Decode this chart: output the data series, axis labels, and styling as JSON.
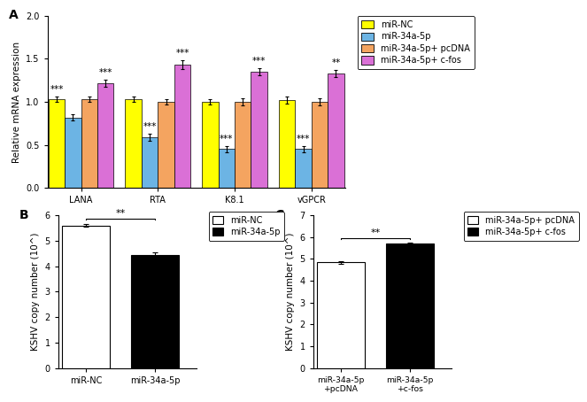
{
  "panel_A": {
    "groups": [
      "LANA",
      "RTA",
      "K8.1",
      "vGPCR"
    ],
    "bar_colors": [
      "#FFFF00",
      "#6CB4E4",
      "#F4A460",
      "#DA70D6"
    ],
    "legend_labels": [
      "miR-NC",
      "miR-34a-5p",
      "miR-34a-5p+ pcDNA",
      "miR-34a-5p+ c-fos"
    ],
    "values": {
      "LANA": [
        1.03,
        0.82,
        1.03,
        1.22
      ],
      "RTA": [
        1.03,
        0.59,
        1.0,
        1.43
      ],
      "K8.1": [
        1.0,
        0.45,
        1.0,
        1.35
      ],
      "vGPCR": [
        1.02,
        0.45,
        1.0,
        1.33
      ]
    },
    "errors": {
      "LANA": [
        0.03,
        0.04,
        0.03,
        0.04
      ],
      "RTA": [
        0.03,
        0.04,
        0.03,
        0.05
      ],
      "K8.1": [
        0.03,
        0.04,
        0.04,
        0.04
      ],
      "vGPCR": [
        0.04,
        0.04,
        0.04,
        0.04
      ]
    },
    "significance": {
      "LANA": [
        "***",
        "",
        "",
        "***"
      ],
      "RTA": [
        "",
        "***",
        "",
        "***"
      ],
      "K8.1": [
        "",
        "***",
        "",
        "***"
      ],
      "vGPCR": [
        "",
        "***",
        "",
        "**"
      ]
    },
    "ylabel": "Relative mRNA expression",
    "ylim": [
      0,
      2.0
    ],
    "yticks": [
      0.0,
      0.5,
      1.0,
      1.5,
      2.0
    ]
  },
  "panel_B": {
    "categories": [
      "miR-NC",
      "miR-34a-5p"
    ],
    "values": [
      5.6,
      4.45
    ],
    "errors": [
      0.06,
      0.08
    ],
    "colors": [
      "white",
      "black"
    ],
    "ylabel": "KSHV copy number (10^)",
    "ylim": [
      0,
      6
    ],
    "yticks": [
      0,
      1,
      2,
      3,
      4,
      5,
      6
    ],
    "significance": "**",
    "legend_labels": [
      "miR-NC",
      "miR-34a-5p"
    ]
  },
  "panel_C": {
    "categories": [
      "miR-34a-5p\n+pcDNA",
      "miR-34a-5p\n+c-fos"
    ],
    "values": [
      4.85,
      5.7
    ],
    "errors": [
      0.06,
      0.05
    ],
    "colors": [
      "white",
      "black"
    ],
    "ylabel": "KSHV copy number (10^)",
    "ylim": [
      0,
      7
    ],
    "yticks": [
      0,
      1,
      2,
      3,
      4,
      5,
      6,
      7
    ],
    "significance": "**",
    "legend_labels": [
      "miR-34a-5p+ pcDNA",
      "miR-34a-5p+ c-fos"
    ]
  },
  "label_fontsize": 7.5,
  "tick_fontsize": 7,
  "sig_fontsize": 8,
  "panel_label_fontsize": 10
}
